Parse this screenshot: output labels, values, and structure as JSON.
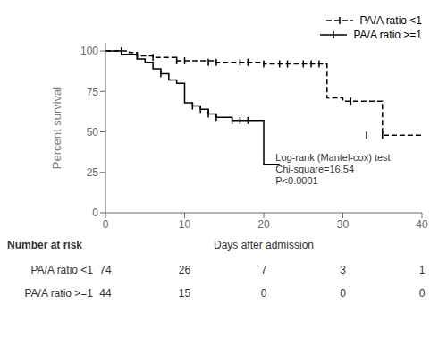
{
  "chart_data": {
    "type": "step",
    "y_label": "Percent survival",
    "xlim": [
      0,
      40
    ],
    "ylim": [
      0,
      105
    ],
    "xticks": [
      0,
      10,
      20,
      30,
      40
    ],
    "yticks": [
      0,
      25,
      50,
      75,
      100
    ],
    "legend": "upper right",
    "series": [
      {
        "name": "PA/A ratio <1",
        "color": "#000000",
        "line_style": "dashed",
        "x": [
          0,
          1,
          2,
          3,
          4,
          5,
          6,
          7,
          8,
          9,
          10,
          14,
          20,
          22,
          28,
          29,
          30,
          31,
          35,
          40
        ],
        "values": [
          100,
          100,
          100,
          99,
          97,
          97,
          96,
          96,
          96,
          94,
          94,
          93,
          92,
          92,
          71,
          71,
          69,
          69,
          48,
          48
        ],
        "censored": {
          "marker": "vline",
          "color": "#000000",
          "x": [
            2,
            4,
            6,
            9,
            10,
            13,
            14,
            17,
            18,
            20,
            22,
            23,
            25,
            26,
            27,
            31,
            33,
            35
          ],
          "values": [
            100,
            97,
            96,
            94,
            94,
            93,
            93,
            93,
            93,
            92,
            92,
            92,
            92,
            92,
            92,
            69,
            48,
            48
          ]
        }
      },
      {
        "name": "PA/A ratio >=1",
        "color": "#000000",
        "line_style": "solid",
        "x": [
          0,
          1,
          2,
          3,
          4,
          5,
          6,
          7,
          8,
          9,
          10,
          11,
          12,
          13,
          14,
          15,
          16,
          19,
          20,
          21,
          22
        ],
        "values": [
          100,
          100,
          98,
          98,
          95,
          93,
          89,
          86,
          82,
          80,
          68,
          66,
          64,
          61,
          59,
          59,
          57,
          57,
          30,
          30,
          30
        ],
        "censored": {
          "marker": "vline",
          "color": "#000000",
          "x": [
            7,
            11,
            12,
            13,
            14,
            16,
            17,
            18
          ],
          "values": [
            86,
            66,
            64,
            61,
            59,
            57,
            57,
            57
          ]
        }
      }
    ],
    "annotation": {
      "text": "Log-rank (Mantel-cox) test\nChi-square=16.54\nP<0.0001",
      "x": 21.5,
      "y": 16
    },
    "risk_table": {
      "title": "Number at risk",
      "x_label": "Days after admission",
      "x": [
        0,
        10,
        20,
        30,
        40
      ],
      "rows": [
        {
          "name": "PA/A ratio <1",
          "values": [
            74,
            26,
            7,
            3,
            1
          ]
        },
        {
          "name": "PA/A ratio >=1",
          "values": [
            44,
            15,
            0,
            0,
            0
          ]
        }
      ]
    }
  }
}
